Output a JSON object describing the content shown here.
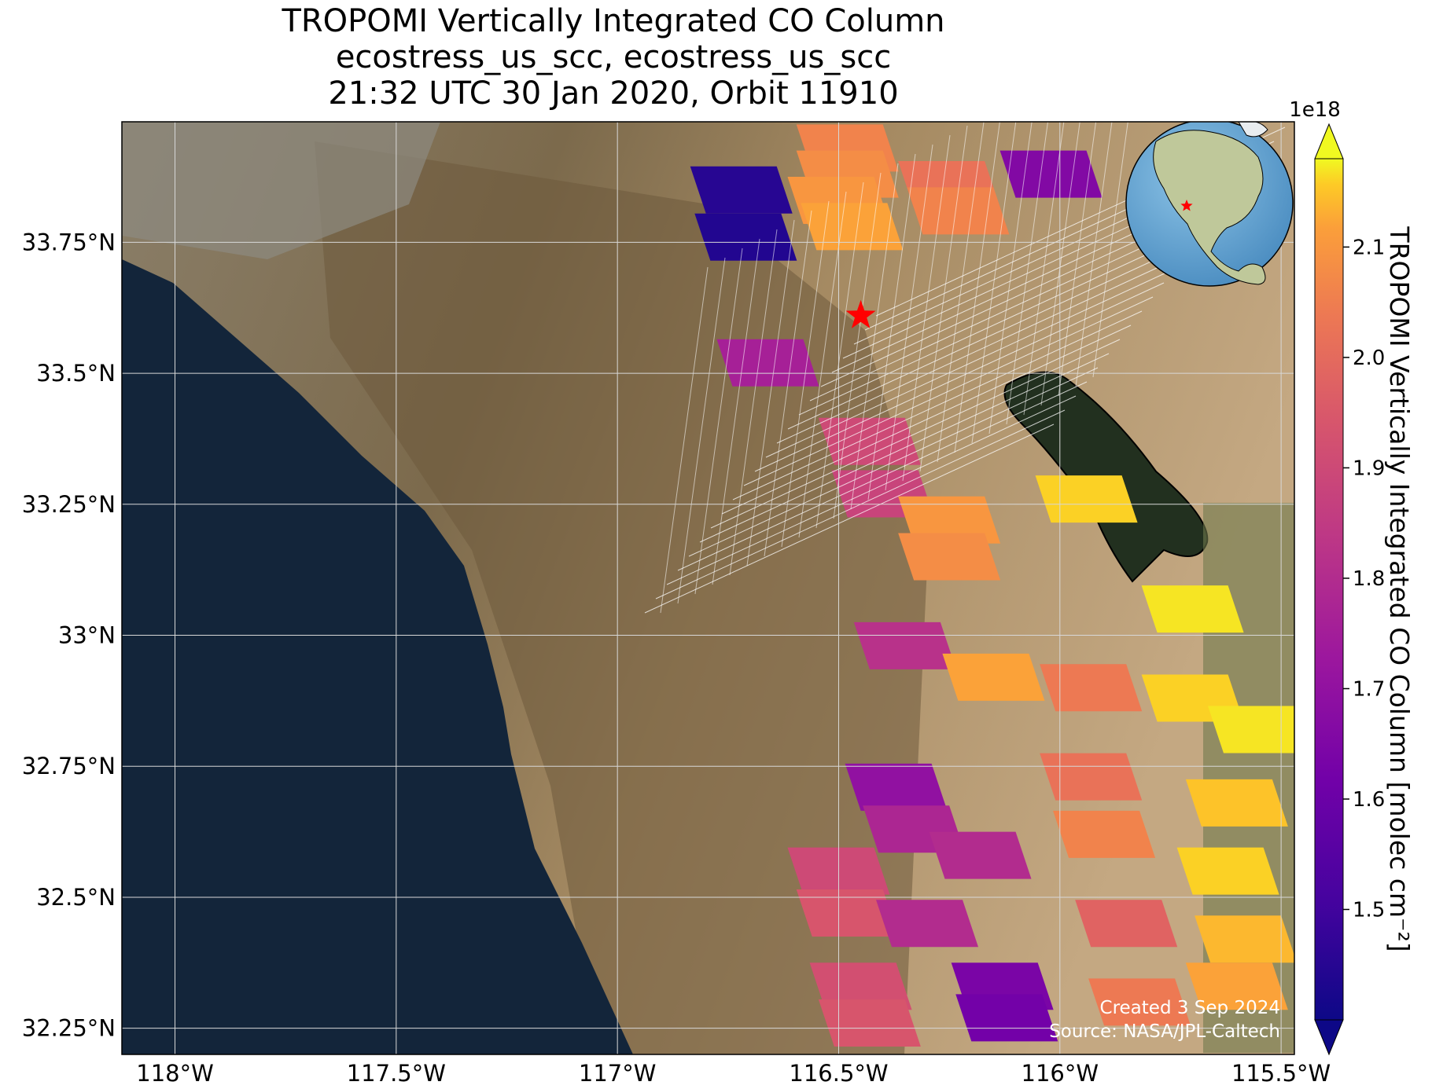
{
  "title": {
    "line1": "TROPOMI Vertically Integrated CO Column",
    "line2": "ecostress_us_scc, ecostress_us_scc",
    "line3": "21:32 UTC 30 Jan 2020, Orbit 11910"
  },
  "map": {
    "lon_range": [
      -118.12,
      -115.47
    ],
    "lat_range": [
      32.2,
      33.98
    ],
    "lat_ticks": [
      {
        "value": 33.75,
        "label": "33.75°N"
      },
      {
        "value": 33.5,
        "label": "33.5°N"
      },
      {
        "value": 33.25,
        "label": "33.25°N"
      },
      {
        "value": 33.0,
        "label": "33°N"
      },
      {
        "value": 32.75,
        "label": "32.75°N"
      },
      {
        "value": 32.5,
        "label": "32.5°N"
      },
      {
        "value": 32.25,
        "label": "32.25°N"
      }
    ],
    "lon_ticks": [
      {
        "value": -118.0,
        "label": "118°W"
      },
      {
        "value": -117.5,
        "label": "117.5°W"
      },
      {
        "value": -117.0,
        "label": "117°W"
      },
      {
        "value": -116.5,
        "label": "116.5°W"
      },
      {
        "value": -116.0,
        "label": "116°W"
      },
      {
        "value": -115.5,
        "label": "115.5°W"
      }
    ],
    "gridlines": true,
    "marker": {
      "type": "red-star",
      "lon": -116.45,
      "lat": 33.61,
      "color": "#ff0000"
    },
    "credit_line1": "Created 3 Sep 2024",
    "credit_line2": "Source: NASA/JPL-Caltech"
  },
  "colorbar": {
    "label": "TROPOMI Vertically Integrated CO Column [molec cm⁻²]",
    "multiplier": "1e18",
    "colormap": "plasma",
    "range": [
      1.4,
      2.18
    ],
    "ticks": [
      {
        "value": 1.5,
        "label": "1.5"
      },
      {
        "value": 1.6,
        "label": "1.6"
      },
      {
        "value": 1.7,
        "label": "1.7"
      },
      {
        "value": 1.8,
        "label": "1.8"
      },
      {
        "value": 1.9,
        "label": "1.9"
      },
      {
        "value": 2.0,
        "label": "2.0"
      },
      {
        "value": 2.1,
        "label": "2.1"
      }
    ]
  },
  "inset_globe": {
    "marker": "red-star",
    "region": "North America"
  },
  "pixels": [
    {
      "lon": -116.48,
      "lat": 33.93,
      "value": 2.06
    },
    {
      "lon": -116.48,
      "lat": 33.88,
      "value": 2.08
    },
    {
      "lon": -116.5,
      "lat": 33.83,
      "value": 2.1
    },
    {
      "lon": -116.47,
      "lat": 33.78,
      "value": 2.12
    },
    {
      "lon": -116.25,
      "lat": 33.86,
      "value": 2.02
    },
    {
      "lon": -116.23,
      "lat": 33.81,
      "value": 2.06
    },
    {
      "lon": -116.02,
      "lat": 33.88,
      "value": 1.66
    },
    {
      "lon": -116.72,
      "lat": 33.85,
      "value": 1.45
    },
    {
      "lon": -116.71,
      "lat": 33.76,
      "value": 1.44
    },
    {
      "lon": -116.66,
      "lat": 33.52,
      "value": 1.76
    },
    {
      "lon": -116.43,
      "lat": 33.37,
      "value": 1.9
    },
    {
      "lon": -116.4,
      "lat": 33.27,
      "value": 1.88
    },
    {
      "lon": -116.25,
      "lat": 33.22,
      "value": 2.1
    },
    {
      "lon": -116.25,
      "lat": 33.15,
      "value": 2.08
    },
    {
      "lon": -115.94,
      "lat": 33.26,
      "value": 2.16
    },
    {
      "lon": -116.35,
      "lat": 32.98,
      "value": 1.82
    },
    {
      "lon": -115.7,
      "lat": 33.05,
      "value": 2.17
    },
    {
      "lon": -116.15,
      "lat": 32.92,
      "value": 2.12
    },
    {
      "lon": -115.93,
      "lat": 32.9,
      "value": 2.04
    },
    {
      "lon": -115.7,
      "lat": 32.88,
      "value": 2.16
    },
    {
      "lon": -115.55,
      "lat": 32.82,
      "value": 2.17
    },
    {
      "lon": -116.37,
      "lat": 32.71,
      "value": 1.7
    },
    {
      "lon": -116.33,
      "lat": 32.63,
      "value": 1.78
    },
    {
      "lon": -116.18,
      "lat": 32.58,
      "value": 1.8
    },
    {
      "lon": -116.5,
      "lat": 32.55,
      "value": 1.9
    },
    {
      "lon": -116.48,
      "lat": 32.47,
      "value": 1.94
    },
    {
      "lon": -116.3,
      "lat": 32.45,
      "value": 1.8
    },
    {
      "lon": -116.13,
      "lat": 32.33,
      "value": 1.64
    },
    {
      "lon": -116.12,
      "lat": 32.27,
      "value": 1.62
    },
    {
      "lon": -116.45,
      "lat": 32.33,
      "value": 1.92
    },
    {
      "lon": -116.43,
      "lat": 32.26,
      "value": 1.94
    },
    {
      "lon": -115.93,
      "lat": 32.73,
      "value": 2.02
    },
    {
      "lon": -115.9,
      "lat": 32.62,
      "value": 2.06
    },
    {
      "lon": -115.85,
      "lat": 32.45,
      "value": 1.98
    },
    {
      "lon": -115.82,
      "lat": 32.3,
      "value": 2.04
    },
    {
      "lon": -115.6,
      "lat": 32.68,
      "value": 2.15
    },
    {
      "lon": -115.62,
      "lat": 32.55,
      "value": 2.16
    },
    {
      "lon": -115.58,
      "lat": 32.42,
      "value": 2.14
    },
    {
      "lon": -115.6,
      "lat": 32.33,
      "value": 2.12
    }
  ]
}
